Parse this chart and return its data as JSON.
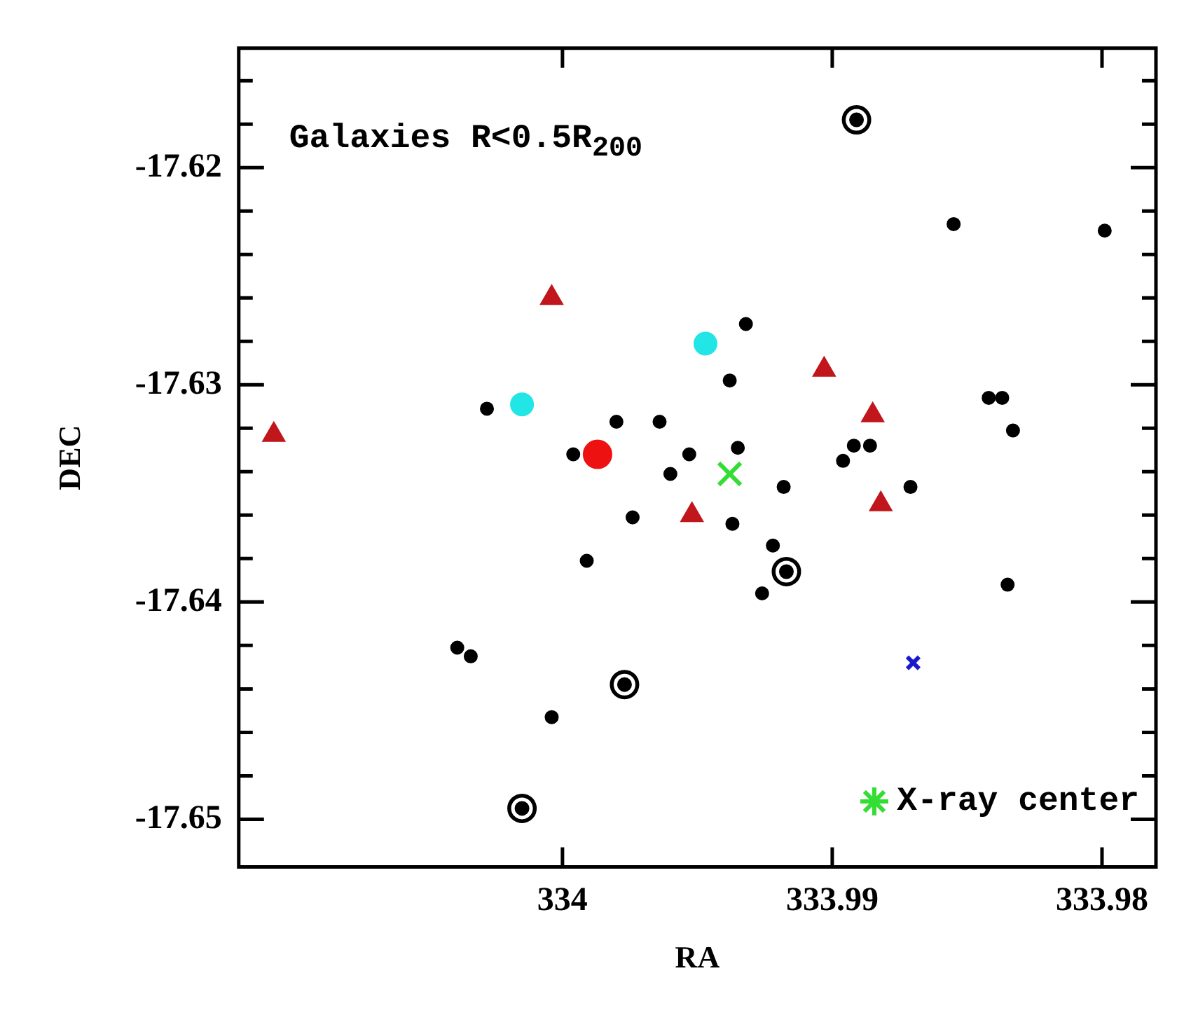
{
  "chart_data": {
    "type": "scatter",
    "title": "Galaxies R<0.5R$_{200}$",
    "xlabel": "RA",
    "ylabel": "DEC",
    "xlim": [
      334.012,
      333.978
    ],
    "xticks": [
      334,
      333.99,
      333.98
    ],
    "ylim": [
      -17.6522,
      -17.6145
    ],
    "yticks": [
      {
        "value": -17.616,
        "label": null
      },
      {
        "value": -17.618,
        "label": null
      },
      -17.62,
      {
        "value": -17.622,
        "label": null
      },
      {
        "value": -17.624,
        "label": null
      },
      {
        "value": -17.626,
        "label": null
      },
      {
        "value": -17.628,
        "label": null
      },
      -17.63,
      {
        "value": -17.632,
        "label": null
      },
      {
        "value": -17.634,
        "label": null
      },
      {
        "value": -17.636,
        "label": null
      },
      {
        "value": -17.638,
        "label": null
      },
      -17.64,
      {
        "value": -17.642,
        "label": null
      },
      {
        "value": -17.644,
        "label": null
      },
      {
        "value": -17.646,
        "label": null
      },
      {
        "value": -17.648,
        "label": null
      },
      -17.65
    ],
    "grid": false,
    "legend": "bottom right",
    "series": [
      {
        "color": "#000000",
        "marker": "circle",
        "x": [
          334.0028,
          333.998,
          333.9964,
          333.9996,
          333.9953,
          333.996,
          333.9974,
          333.9991,
          334.0039,
          334.0034,
          334.0004,
          333.9855,
          333.9799,
          333.9932,
          333.9938,
          333.9842,
          333.9837,
          333.9833,
          333.9935,
          333.9892,
          333.9886,
          333.9896,
          333.9918,
          333.9871,
          333.9937,
          333.9922,
          333.9926,
          333.9835
        ],
        "values": [
          -17.6311,
          -17.6317,
          -17.6317,
          -17.6332,
          -17.6332,
          -17.6341,
          -17.6361,
          -17.6381,
          -17.6421,
          -17.6425,
          -17.6453,
          -17.6226,
          -17.6229,
          -17.6272,
          -17.6298,
          -17.6306,
          -17.6306,
          -17.6321,
          -17.6329,
          -17.6328,
          -17.6328,
          -17.6335,
          -17.6347,
          -17.6347,
          -17.6364,
          -17.6374,
          -17.6396,
          -17.6392
        ]
      },
      {
        "color": "#000000",
        "marker": "circle",
        "x": [
          333.9977,
          334.0015,
          333.9891,
          333.9917
        ],
        "values": [
          -17.6438,
          -17.6495,
          -17.6178,
          -17.6386
        ]
      },
      {
        "color": "#c0161c",
        "marker": "triangle",
        "x": [
          334.0004,
          334.0107,
          333.9903,
          333.9885,
          333.9952,
          333.9882
        ],
        "values": [
          -17.626,
          -17.6323,
          -17.6293,
          -17.6314,
          -17.636,
          -17.6355
        ]
      },
      {
        "color": "#22e5e5",
        "marker": "circle",
        "x": [
          334.0015,
          333.9947
        ],
        "values": [
          -17.6309,
          -17.6281
        ]
      },
      {
        "color": "#ee1111",
        "marker": "circle",
        "x": [
          333.9987
        ],
        "values": [
          -17.6332
        ]
      },
      {
        "name": "X-ray center",
        "color": "#33dd33",
        "marker": "cross",
        "x": [
          333.9938
        ],
        "values": [
          -17.6341
        ]
      },
      {
        "color": "#1a1acc",
        "marker": "cross",
        "x": [
          333.987
        ],
        "values": [
          -17.6428
        ]
      }
    ]
  }
}
